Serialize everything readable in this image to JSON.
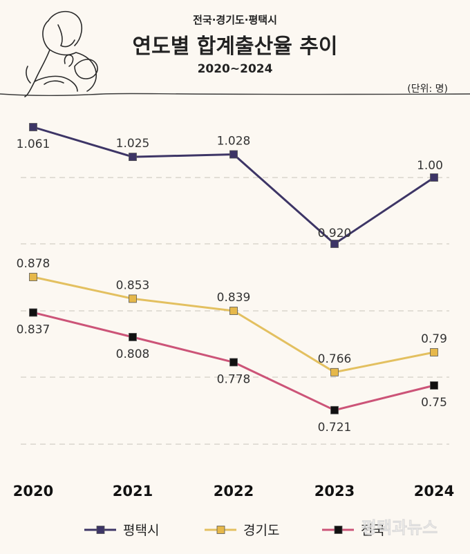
{
  "header": {
    "subtitle": "전국·경기도·평택시",
    "title": "연도별 합계출산율 추이",
    "period": "2020~2024"
  },
  "unit_label": "(단위: 명)",
  "watermark": "평택과뉴스",
  "colors": {
    "background": "#fcf8f2",
    "pyeongtaek": "#3d3566",
    "gyeonggi": "#e3c060",
    "national": "#cc5478",
    "grid": "#c9c3bb",
    "text": "#222222"
  },
  "chart_data": {
    "type": "line",
    "categories": [
      "2020",
      "2021",
      "2022",
      "2023",
      "2024"
    ],
    "series": [
      {
        "name": "평택시",
        "values": [
          1.061,
          1.025,
          1.028,
          0.92,
          1.0
        ],
        "labels": [
          "1.061",
          "1.025",
          "1.028",
          "0.920",
          "1.00"
        ],
        "color": "#3d3566",
        "marker_fill": "#3d3566"
      },
      {
        "name": "경기도",
        "values": [
          0.878,
          0.853,
          0.839,
          0.766,
          0.79
        ],
        "labels": [
          "0.878",
          "0.853",
          "0.839",
          "0.766",
          "0.79"
        ],
        "color": "#e3c060",
        "marker_fill": "#e6b84a"
      },
      {
        "name": "전국",
        "values": [
          0.837,
          0.808,
          0.778,
          0.721,
          0.75
        ],
        "labels": [
          "0.837",
          "0.808",
          "0.778",
          "0.721",
          "0.75"
        ],
        "color": "#cc5478",
        "marker_fill": "#111111"
      }
    ],
    "legend_position": "bottom",
    "grid": true
  }
}
